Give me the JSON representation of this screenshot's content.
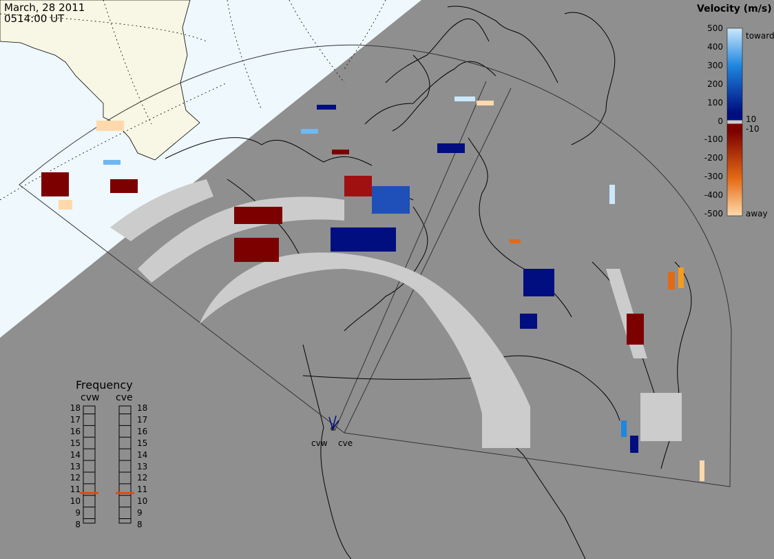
{
  "header": {
    "date": "March, 28 2011",
    "time": "0514:00 UT"
  },
  "colorbar": {
    "title": "Velocity (m/s)",
    "ticks": [
      "500",
      "400",
      "300",
      "200",
      "100",
      "0",
      "-100",
      "-200",
      "-300",
      "-400",
      "-500"
    ],
    "inner_ticks": [
      "10",
      "-10"
    ],
    "toward_label": "toward",
    "away_label": "away",
    "colors": {
      "toward_lightest": "#cbe8fb",
      "toward_mid": "#1f86e0",
      "toward_dark": "#000e80",
      "away_dark": "#7d0000",
      "away_mid": "#e36a14",
      "away_lightest": "#ffd9ac"
    }
  },
  "frequency_panel": {
    "title": "Frequency",
    "radars": [
      {
        "name": "cvw",
        "frequency_mhz": 10.7
      },
      {
        "name": "cve",
        "frequency_mhz": 10.7
      }
    ],
    "ticks": [
      "18",
      "17",
      "16",
      "15",
      "14",
      "13",
      "12",
      "11",
      "10",
      "9",
      "8"
    ],
    "marker_color": "#e34a0c"
  },
  "map": {
    "background_color": "#8f8f8f",
    "daylight_color": "#eef8fd",
    "land_daylight_color": "#f8f6e4",
    "no_velocity_color": "#cccccc",
    "radar_sites": [
      {
        "name": "cvw"
      },
      {
        "name": "cve"
      }
    ]
  }
}
